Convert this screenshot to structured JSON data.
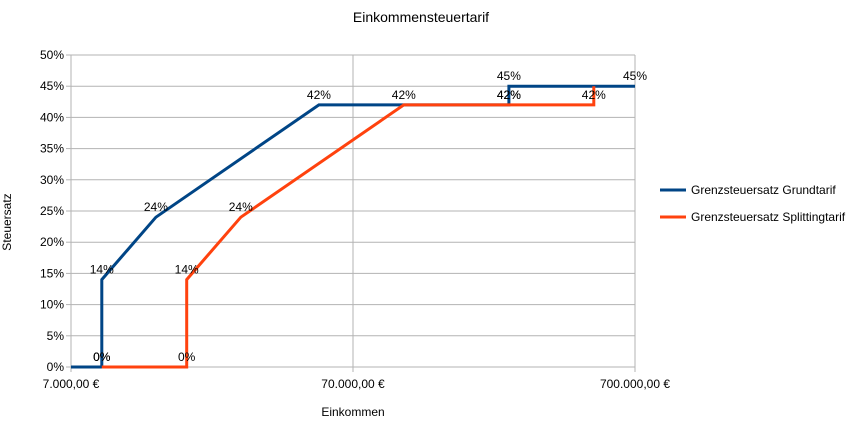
{
  "chart_data": {
    "type": "line",
    "title": "Einkommensteuertarif",
    "xlabel": "Einkommen",
    "ylabel": "Steuersatz",
    "x_scale": "log",
    "xlim": [
      7000,
      700000
    ],
    "x_ticks": [
      {
        "value": 7000,
        "label": "7.000,00 €"
      },
      {
        "value": 70000,
        "label": "70.000,00 €"
      },
      {
        "value": 700000,
        "label": "700.000,00 €"
      }
    ],
    "ylim": [
      0,
      50
    ],
    "y_ticks": [
      {
        "value": 0,
        "label": "0%"
      },
      {
        "value": 5,
        "label": "5%"
      },
      {
        "value": 10,
        "label": "10%"
      },
      {
        "value": 15,
        "label": "15%"
      },
      {
        "value": 20,
        "label": "20%"
      },
      {
        "value": 25,
        "label": "25%"
      },
      {
        "value": 30,
        "label": "30%"
      },
      {
        "value": 35,
        "label": "35%"
      },
      {
        "value": 40,
        "label": "40%"
      },
      {
        "value": 45,
        "label": "45%"
      },
      {
        "value": 50,
        "label": "50%"
      }
    ],
    "grid": true,
    "legend_position": "right",
    "series": [
      {
        "name": "Grenzsteuersatz Grundtarif",
        "color": "#004586",
        "points": [
          {
            "x": 7000,
            "y": 0
          },
          {
            "x": 9000,
            "y": 0
          },
          {
            "x": 9000,
            "y": 14,
            "label": "14%"
          },
          {
            "x": 14000,
            "y": 24,
            "label": "24%"
          },
          {
            "x": 53000,
            "y": 42,
            "label": "42%"
          },
          {
            "x": 250000,
            "y": 42,
            "label": "42%"
          },
          {
            "x": 250000,
            "y": 45,
            "label": "45%"
          },
          {
            "x": 700000,
            "y": 45,
            "label": "45%"
          }
        ],
        "extra_labels": [
          {
            "x": 9000,
            "y": 0,
            "label": "0%"
          }
        ]
      },
      {
        "name": "Grenzsteuersatz Splittingtarif",
        "color": "#ff420e",
        "points": [
          {
            "x": 9000,
            "y": 0,
            "label": "0%"
          },
          {
            "x": 18000,
            "y": 0
          },
          {
            "x": 18000,
            "y": 14,
            "label": "14%"
          },
          {
            "x": 28000,
            "y": 24,
            "label": "24%"
          },
          {
            "x": 106000,
            "y": 42,
            "label": "42%"
          },
          {
            "x": 250000,
            "y": 42,
            "label": "42%"
          },
          {
            "x": 500000,
            "y": 42,
            "label": "42%"
          },
          {
            "x": 500000,
            "y": 45
          }
        ],
        "extra_labels": [
          {
            "x": 18000,
            "y": 0,
            "label": "0%"
          }
        ]
      }
    ]
  }
}
